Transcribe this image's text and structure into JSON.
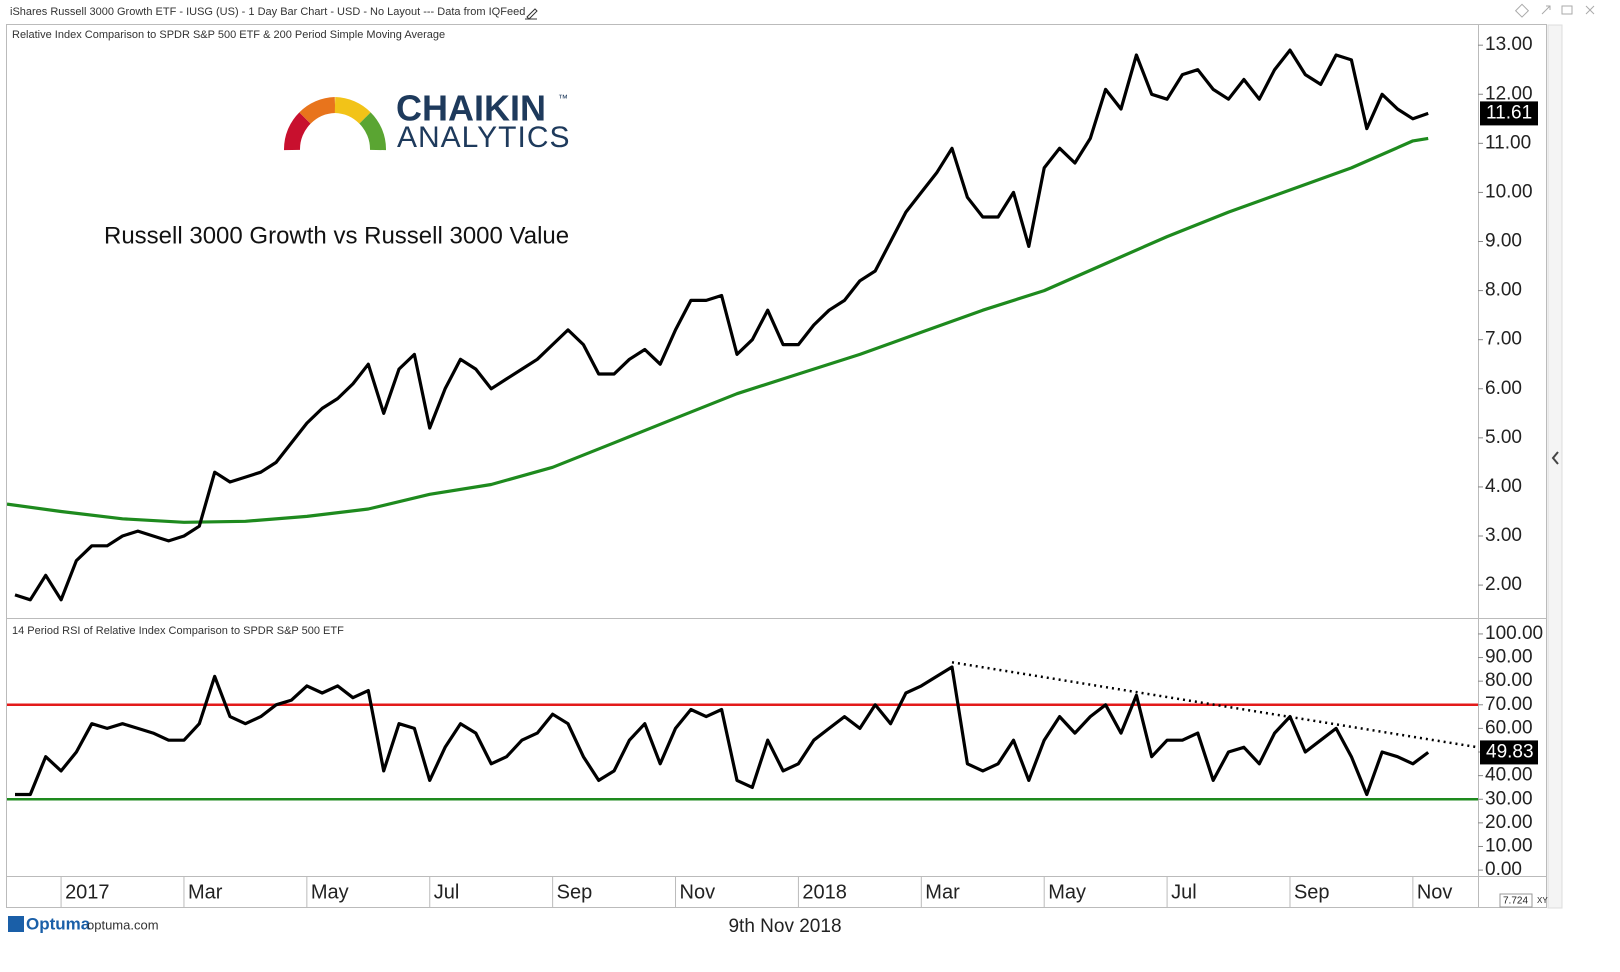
{
  "window": {
    "title": "iShares Russell 3000 Growth ETF - IUSG (US) - 1 Day Bar Chart - USD - No Layout --- Data from IQFeed"
  },
  "logo": {
    "name": "CHAIKIN",
    "mark": "™",
    "sub": "ANALYTICS"
  },
  "footer": {
    "brand": "Optuma",
    "site": "optuma.com",
    "date": "9th Nov 2018",
    "scale": "7.724",
    "mode": "XY"
  },
  "chart_data": [
    {
      "type": "line",
      "title": "Relative Index Comparison to SPDR S&P 500 ETF & 200 Period Simple Moving Average",
      "annotation": "Russell 3000 Growth vs Russell 3000 Value",
      "x": [
        -0.75,
        -0.5,
        -0.25,
        0,
        0.25,
        0.5,
        0.75,
        1,
        1.25,
        1.5,
        1.75,
        2,
        2.25,
        2.5,
        2.75,
        3,
        3.25,
        3.5,
        3.75,
        4,
        4.25,
        4.5,
        4.75,
        5,
        5.25,
        5.5,
        5.75,
        6,
        6.25,
        6.5,
        6.75,
        7,
        7.25,
        7.5,
        7.75,
        8,
        8.25,
        8.5,
        8.75,
        9,
        9.25,
        9.5,
        9.75,
        10,
        10.25,
        10.5,
        10.75,
        11,
        11.25,
        11.5,
        11.75,
        12,
        12.25,
        12.5,
        12.75,
        13,
        13.25,
        13.5,
        13.75,
        14,
        14.25,
        14.5,
        14.75,
        15,
        15.25,
        15.5,
        15.75,
        16,
        16.25,
        16.5,
        16.75,
        17,
        17.25,
        17.5,
        17.75,
        18,
        18.25,
        18.5,
        18.75,
        19,
        19.25,
        19.5,
        19.75,
        20,
        20.25,
        20.5,
        20.75,
        21,
        21.25,
        21.5,
        21.75,
        22,
        22.25
      ],
      "series": [
        {
          "color": "#000000",
          "values": [
            1.8,
            1.7,
            2.2,
            1.7,
            2.5,
            2.8,
            2.8,
            3.0,
            3.1,
            3.0,
            2.9,
            3.0,
            3.2,
            4.3,
            4.1,
            4.2,
            4.3,
            4.5,
            4.9,
            5.3,
            5.6,
            5.8,
            6.1,
            6.5,
            5.5,
            6.4,
            6.7,
            5.2,
            6.0,
            6.6,
            6.4,
            6.0,
            6.2,
            6.4,
            6.6,
            6.9,
            7.2,
            6.9,
            6.3,
            6.3,
            6.6,
            6.8,
            6.5,
            7.2,
            7.8,
            7.8,
            7.9,
            6.7,
            7.0,
            7.6,
            6.9,
            6.9,
            7.3,
            7.6,
            7.8,
            8.2,
            8.4,
            9.0,
            9.6,
            10.0,
            10.4,
            10.9,
            9.9,
            9.5,
            9.5,
            10.0,
            8.9,
            10.5,
            10.9,
            10.6,
            11.1,
            12.1,
            11.7,
            12.8,
            12.0,
            11.9,
            12.4,
            12.5,
            12.1,
            11.9,
            12.3,
            11.9,
            12.5,
            12.9,
            12.4,
            12.2,
            12.8,
            12.7,
            11.3,
            12.0,
            11.7,
            11.5,
            11.61
          ]
        },
        {
          "color": "#1e8a1e",
          "x": [
            -0.88,
            0,
            1,
            2,
            3,
            4,
            5,
            6,
            7,
            8,
            9,
            10,
            11,
            12,
            13,
            14,
            15,
            16,
            17,
            18,
            19,
            20,
            21,
            22,
            22.25
          ],
          "values": [
            3.65,
            3.5,
            3.35,
            3.28,
            3.3,
            3.4,
            3.55,
            3.85,
            4.05,
            4.4,
            4.9,
            5.4,
            5.9,
            6.3,
            6.7,
            7.15,
            7.6,
            8.0,
            8.55,
            9.1,
            9.6,
            10.05,
            10.5,
            11.05,
            11.1
          ]
        }
      ],
      "xlim": [
        -0.88,
        23.06
      ],
      "ylim": [
        1.35,
        13.35
      ],
      "yticks": [
        {
          "value": 2,
          "label": "2.00"
        },
        {
          "value": 3,
          "label": "3.00"
        },
        {
          "value": 4,
          "label": "4.00"
        },
        {
          "value": 5,
          "label": "5.00"
        },
        {
          "value": 6,
          "label": "6.00"
        },
        {
          "value": 7,
          "label": "7.00"
        },
        {
          "value": 8,
          "label": "8.00"
        },
        {
          "value": 9,
          "label": "9.00"
        },
        {
          "value": 10,
          "label": "10.00"
        },
        {
          "value": 11,
          "label": "11.00"
        },
        {
          "value": 12,
          "label": "12.00"
        },
        {
          "value": 13,
          "label": "13.00"
        }
      ]
    },
    {
      "type": "line",
      "title": "14 Period RSI of Relative Index Comparison to SPDR S&P 500 ETF",
      "x": [
        -0.75,
        -0.5,
        -0.25,
        0,
        0.25,
        0.5,
        0.75,
        1,
        1.25,
        1.5,
        1.75,
        2,
        2.25,
        2.5,
        2.75,
        3,
        3.25,
        3.5,
        3.75,
        4,
        4.25,
        4.5,
        4.75,
        5,
        5.25,
        5.5,
        5.75,
        6,
        6.25,
        6.5,
        6.75,
        7,
        7.25,
        7.5,
        7.75,
        8,
        8.25,
        8.5,
        8.75,
        9,
        9.25,
        9.5,
        9.75,
        10,
        10.25,
        10.5,
        10.75,
        11,
        11.25,
        11.5,
        11.75,
        12,
        12.25,
        12.5,
        12.75,
        13,
        13.25,
        13.5,
        13.75,
        14,
        14.25,
        14.5,
        14.75,
        15,
        15.25,
        15.5,
        15.75,
        16,
        16.25,
        16.5,
        16.75,
        17,
        17.25,
        17.5,
        17.75,
        18,
        18.25,
        18.5,
        18.75,
        19,
        19.25,
        19.5,
        19.75,
        20,
        20.25,
        20.5,
        20.75,
        21,
        21.25,
        21.5,
        21.75,
        22,
        22.25
      ],
      "series": [
        {
          "color": "#000000",
          "values": [
            32,
            32,
            48,
            42,
            50,
            62,
            60,
            62,
            60,
            58,
            55,
            55,
            62,
            82,
            65,
            62,
            65,
            70,
            72,
            78,
            75,
            78,
            73,
            76,
            42,
            62,
            60,
            38,
            52,
            62,
            58,
            45,
            48,
            55,
            58,
            66,
            62,
            48,
            38,
            42,
            55,
            62,
            45,
            60,
            68,
            65,
            68,
            38,
            35,
            55,
            42,
            45,
            55,
            60,
            65,
            60,
            70,
            62,
            75,
            78,
            82,
            86,
            45,
            42,
            45,
            55,
            38,
            55,
            65,
            58,
            65,
            70,
            58,
            74,
            48,
            55,
            55,
            58,
            38,
            50,
            52,
            45,
            58,
            65,
            50,
            55,
            60,
            48,
            32,
            50,
            48,
            45,
            49.83
          ]
        }
      ],
      "reference_lines": [
        {
          "value": 70,
          "color": "#e31a1a"
        },
        {
          "value": 30,
          "color": "#1e8a1e"
        }
      ],
      "trendline": {
        "x": [
          14.5,
          23.06
        ],
        "values": [
          88,
          52
        ]
      },
      "xlim": [
        -0.88,
        23.06
      ],
      "ylim": [
        -2.5,
        105.9
      ],
      "yticks": [
        {
          "value": 0,
          "label": "0.00"
        },
        {
          "value": 10,
          "label": "10.00"
        },
        {
          "value": 20,
          "label": "20.00"
        },
        {
          "value": 30,
          "label": "30.00"
        },
        {
          "value": 40,
          "label": "40.00"
        },
        {
          "value": 50,
          "label": "50.00"
        },
        {
          "value": 60,
          "label": "60.00"
        },
        {
          "value": 70,
          "label": "70.00"
        },
        {
          "value": 80,
          "label": "80.00"
        },
        {
          "value": 90,
          "label": "90.00"
        },
        {
          "value": 100,
          "label": "100.00"
        }
      ],
      "xticks": [
        {
          "value": 0,
          "label": "2017"
        },
        {
          "value": 2,
          "label": "Mar"
        },
        {
          "value": 4,
          "label": "May"
        },
        {
          "value": 6,
          "label": "Jul"
        },
        {
          "value": 8,
          "label": "Sep"
        },
        {
          "value": 10,
          "label": "Nov"
        },
        {
          "value": 12,
          "label": "2018"
        },
        {
          "value": 14,
          "label": "Mar"
        },
        {
          "value": 16,
          "label": "May"
        },
        {
          "value": 18,
          "label": "Jul"
        },
        {
          "value": 20,
          "label": "Sep"
        },
        {
          "value": 22,
          "label": "Nov"
        }
      ]
    }
  ]
}
